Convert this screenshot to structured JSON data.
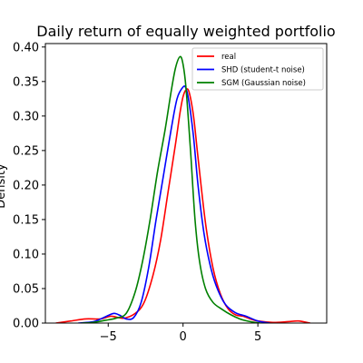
{
  "chart_data": {
    "type": "line",
    "title": "Daily return of equally weighted portfolio",
    "xlabel": "",
    "ylabel": "Density",
    "xlim": [
      -9.2,
      9.6
    ],
    "ylim": [
      0,
      0.405
    ],
    "xticks": [
      -5,
      0,
      5
    ],
    "xtick_labels": [
      "−5",
      "0",
      "5"
    ],
    "yticks": [
      0.0,
      0.05,
      0.1,
      0.15,
      0.2,
      0.25,
      0.3,
      0.35,
      0.4
    ],
    "ytick_labels": [
      "0.00",
      "0.05",
      "0.10",
      "0.15",
      "0.20",
      "0.25",
      "0.30",
      "0.35",
      "0.40"
    ],
    "grid": false,
    "legend_position": "top-right",
    "series": [
      {
        "name": "real",
        "color": "#ff0000",
        "x": [
          -8.5,
          -7.5,
          -6.5,
          -5.5,
          -4.8,
          -4.0,
          -3.2,
          -2.6,
          -2.0,
          -1.5,
          -1.0,
          -0.5,
          -0.2,
          0.0,
          0.2,
          0.4,
          0.7,
          1.0,
          1.5,
          2.0,
          2.5,
          3.0,
          3.5,
          4.0,
          4.5,
          5.0,
          6.0,
          7.0,
          7.7,
          8.5
        ],
        "y": [
          0.0,
          0.003,
          0.006,
          0.006,
          0.01,
          0.007,
          0.014,
          0.03,
          0.07,
          0.12,
          0.19,
          0.26,
          0.305,
          0.328,
          0.338,
          0.335,
          0.3,
          0.24,
          0.145,
          0.08,
          0.042,
          0.021,
          0.012,
          0.01,
          0.006,
          0.003,
          0.001,
          0.002,
          0.003,
          0.0
        ]
      },
      {
        "name": "SHD (student-t noise)",
        "color": "#0000ff",
        "x": [
          -7.0,
          -6.0,
          -5.5,
          -5.0,
          -4.6,
          -4.2,
          -3.8,
          -3.3,
          -2.8,
          -2.3,
          -1.8,
          -1.3,
          -0.8,
          -0.4,
          0.0,
          0.2,
          0.4,
          0.7,
          1.0,
          1.4,
          1.8,
          2.2,
          2.8,
          3.5,
          4.2,
          5.0,
          5.8
        ],
        "y": [
          0.0,
          0.002,
          0.006,
          0.011,
          0.014,
          0.011,
          0.006,
          0.008,
          0.03,
          0.08,
          0.15,
          0.215,
          0.28,
          0.325,
          0.342,
          0.34,
          0.32,
          0.27,
          0.2,
          0.13,
          0.085,
          0.055,
          0.028,
          0.015,
          0.01,
          0.003,
          0.0
        ]
      },
      {
        "name": "SGM (Gaussian noise)",
        "color": "#008000",
        "x": [
          -6.8,
          -6.0,
          -5.2,
          -4.5,
          -3.8,
          -3.2,
          -2.7,
          -2.2,
          -1.7,
          -1.2,
          -0.8,
          -0.5,
          -0.2,
          0.0,
          0.2,
          0.5,
          0.8,
          1.1,
          1.5,
          2.0,
          2.6,
          3.2,
          3.8,
          4.3,
          4.8,
          5.2
        ],
        "y": [
          0.0,
          0.001,
          0.004,
          0.007,
          0.014,
          0.045,
          0.09,
          0.15,
          0.22,
          0.28,
          0.335,
          0.37,
          0.386,
          0.375,
          0.34,
          0.25,
          0.15,
          0.09,
          0.05,
          0.03,
          0.02,
          0.012,
          0.006,
          0.003,
          0.001,
          0.0
        ]
      }
    ]
  }
}
